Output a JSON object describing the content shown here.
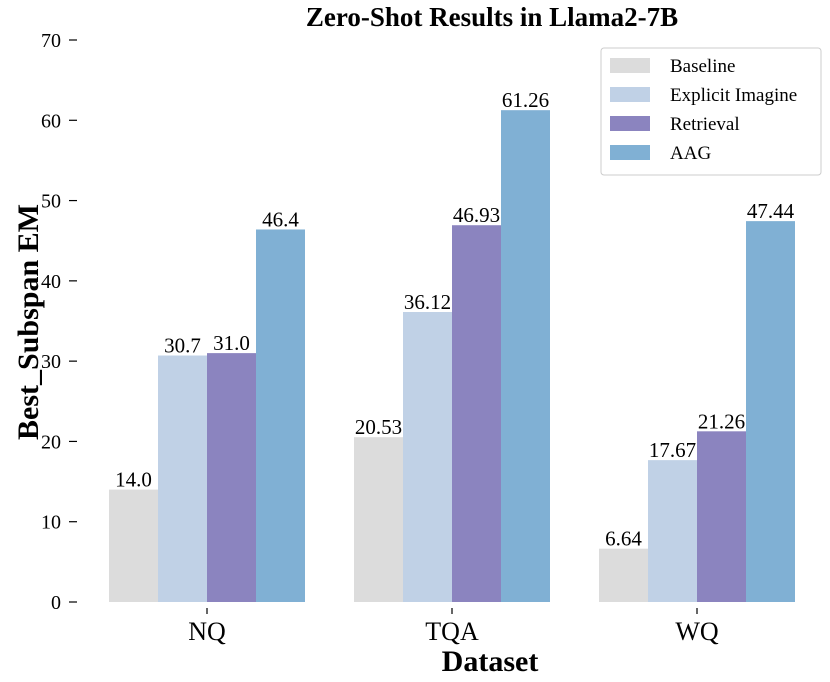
{
  "chart_data": {
    "type": "bar",
    "title": "Zero-Shot Results in Llama2-7B",
    "xlabel": "Dataset",
    "ylabel": "Best_Subspan EM",
    "ylim": [
      0,
      70
    ],
    "yticks": [
      0,
      10,
      20,
      30,
      40,
      50,
      60,
      70
    ],
    "categories": [
      "NQ",
      "TQA",
      "WQ"
    ],
    "series": [
      {
        "name": "Baseline",
        "color": "#dcdcdc",
        "values": [
          14.0,
          20.53,
          6.64
        ],
        "labels": [
          "14.0",
          "20.53",
          "6.64"
        ]
      },
      {
        "name": "Explicit Imagine",
        "color": "#c0d1e6",
        "values": [
          30.7,
          36.12,
          17.67
        ],
        "labels": [
          "30.7",
          "36.12",
          "17.67"
        ]
      },
      {
        "name": "Retrieval",
        "color": "#8b84bf",
        "values": [
          31.0,
          46.93,
          21.26
        ],
        "labels": [
          "31.0",
          "46.93",
          "21.26"
        ]
      },
      {
        "name": "AAG",
        "color": "#80b0d4",
        "values": [
          46.4,
          61.26,
          47.44
        ],
        "labels": [
          "46.4",
          "61.26",
          "47.44"
        ]
      }
    ],
    "grid": false,
    "legend_position": "top-right"
  }
}
